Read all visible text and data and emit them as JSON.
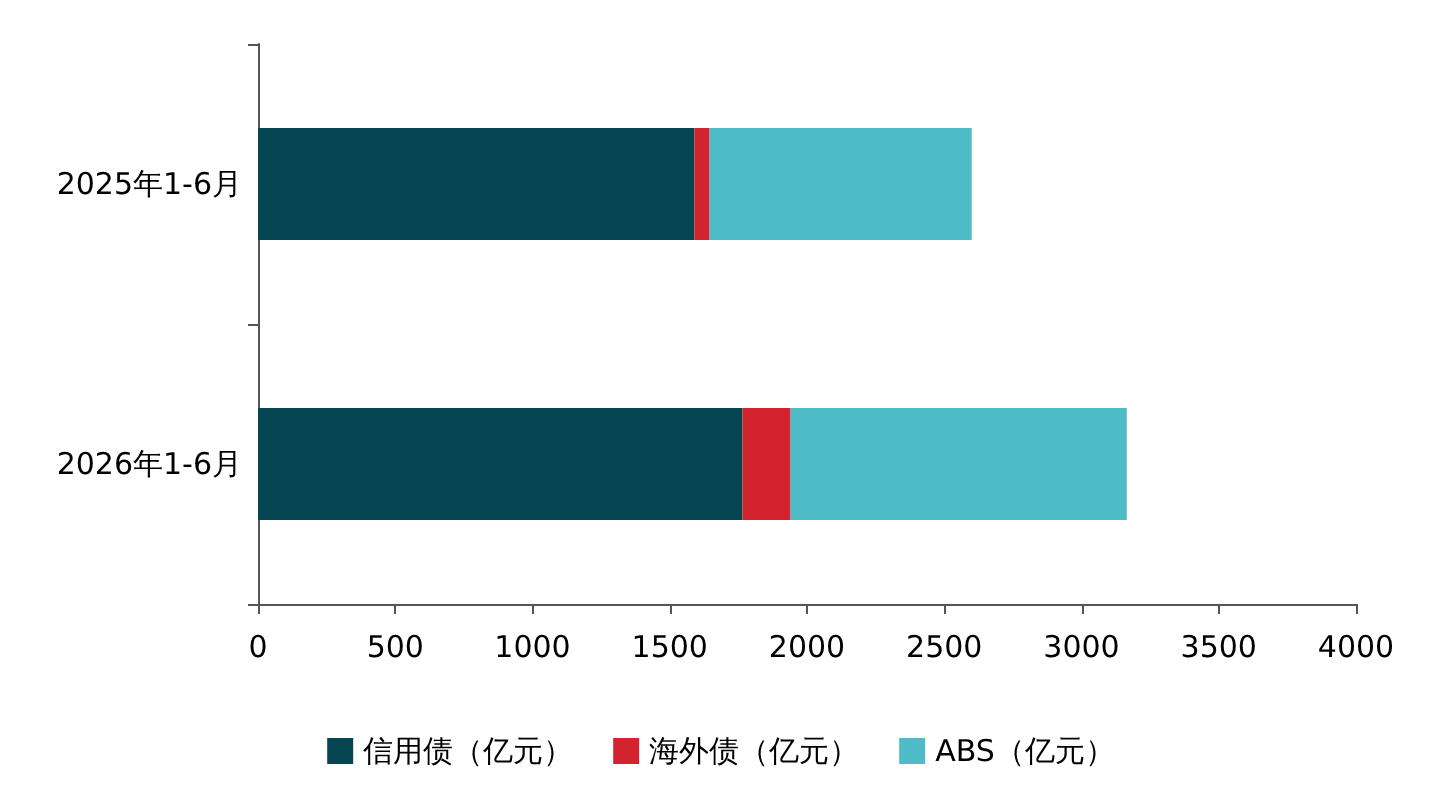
{
  "chart_data": {
    "type": "bar",
    "orientation": "horizontal",
    "stacked": true,
    "categories": [
      "2025年1-6月",
      "2026年1-6月"
    ],
    "series": [
      {
        "name": "信用债（亿元）",
        "color": "#054652",
        "values": [
          1590,
          1765
        ]
      },
      {
        "name": "海外债（亿元）",
        "color": "#d2232f",
        "values": [
          55,
          175
        ]
      },
      {
        "name": "ABS（亿元）",
        "color": "#4dbcc6",
        "values": [
          955,
          1225
        ]
      }
    ],
    "xlim": [
      0,
      4000
    ],
    "xticks": [
      0,
      500,
      1000,
      1500,
      2000,
      2500,
      3000,
      3500,
      4000
    ],
    "grid": false,
    "legend": "bottom"
  }
}
